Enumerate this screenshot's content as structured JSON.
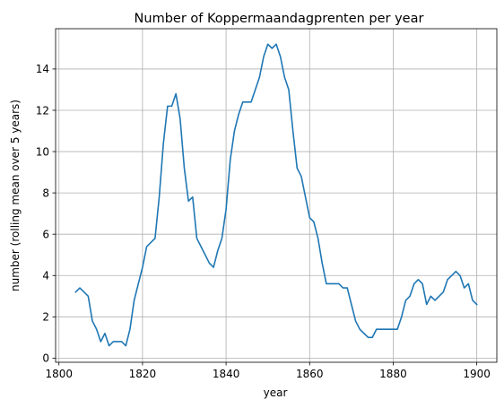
{
  "chart_data": {
    "type": "line",
    "title": "Number of Koppermaandagprenten per year",
    "xlabel": "year",
    "ylabel": "number (rolling mean over 5 years)",
    "xlim": [
      1799.2,
      1904.8
    ],
    "ylim": [
      -0.2,
      15.95
    ],
    "x_ticks": [
      1800,
      1820,
      1840,
      1860,
      1880,
      1900
    ],
    "y_ticks": [
      0,
      2,
      4,
      6,
      8,
      10,
      12,
      14
    ],
    "grid": true,
    "legend": "none",
    "series": [
      {
        "color": "#1f77b4",
        "x": [
          1804,
          1805,
          1806,
          1807,
          1808,
          1809,
          1810,
          1811,
          1812,
          1813,
          1814,
          1815,
          1816,
          1817,
          1818,
          1819,
          1820,
          1821,
          1822,
          1823,
          1824,
          1825,
          1826,
          1827,
          1828,
          1829,
          1830,
          1831,
          1832,
          1833,
          1834,
          1835,
          1836,
          1837,
          1838,
          1839,
          1840,
          1841,
          1842,
          1843,
          1844,
          1845,
          1846,
          1847,
          1848,
          1849,
          1850,
          1851,
          1852,
          1853,
          1854,
          1855,
          1856,
          1857,
          1858,
          1859,
          1860,
          1861,
          1862,
          1863,
          1864,
          1865,
          1866,
          1867,
          1868,
          1869,
          1870,
          1871,
          1872,
          1873,
          1874,
          1875,
          1876,
          1877,
          1878,
          1879,
          1880,
          1881,
          1882,
          1883,
          1884,
          1885,
          1886,
          1887,
          1888,
          1889,
          1890,
          1891,
          1892,
          1893,
          1894,
          1895,
          1896,
          1897,
          1898,
          1899,
          1900
        ],
        "y": [
          3.2,
          3.4,
          3.2,
          3.0,
          1.8,
          1.4,
          0.8,
          1.2,
          0.6,
          0.8,
          0.8,
          0.8,
          0.6,
          1.4,
          2.8,
          3.6,
          4.4,
          5.4,
          5.6,
          5.8,
          7.8,
          10.4,
          12.2,
          12.2,
          12.8,
          11.6,
          9.2,
          7.6,
          7.8,
          5.8,
          5.4,
          5.0,
          4.6,
          4.4,
          5.2,
          5.8,
          7.2,
          9.6,
          11.0,
          11.8,
          12.4,
          12.4,
          12.4,
          13.0,
          13.6,
          14.6,
          15.2,
          15.0,
          15.2,
          14.6,
          13.6,
          13.0,
          11.0,
          9.2,
          8.8,
          7.8,
          6.8,
          6.6,
          5.8,
          4.6,
          3.6,
          3.6,
          3.6,
          3.6,
          3.4,
          3.4,
          2.6,
          1.8,
          1.4,
          1.2,
          1.0,
          1.0,
          1.4,
          1.4,
          1.4,
          1.4,
          1.4,
          1.4,
          2.0,
          2.8,
          3.0,
          3.6,
          3.8,
          3.6,
          2.6,
          3.0,
          2.8,
          3.0,
          3.2,
          3.8,
          4.0,
          4.2,
          4.0,
          3.4,
          3.6,
          2.8,
          2.6
        ]
      }
    ]
  }
}
